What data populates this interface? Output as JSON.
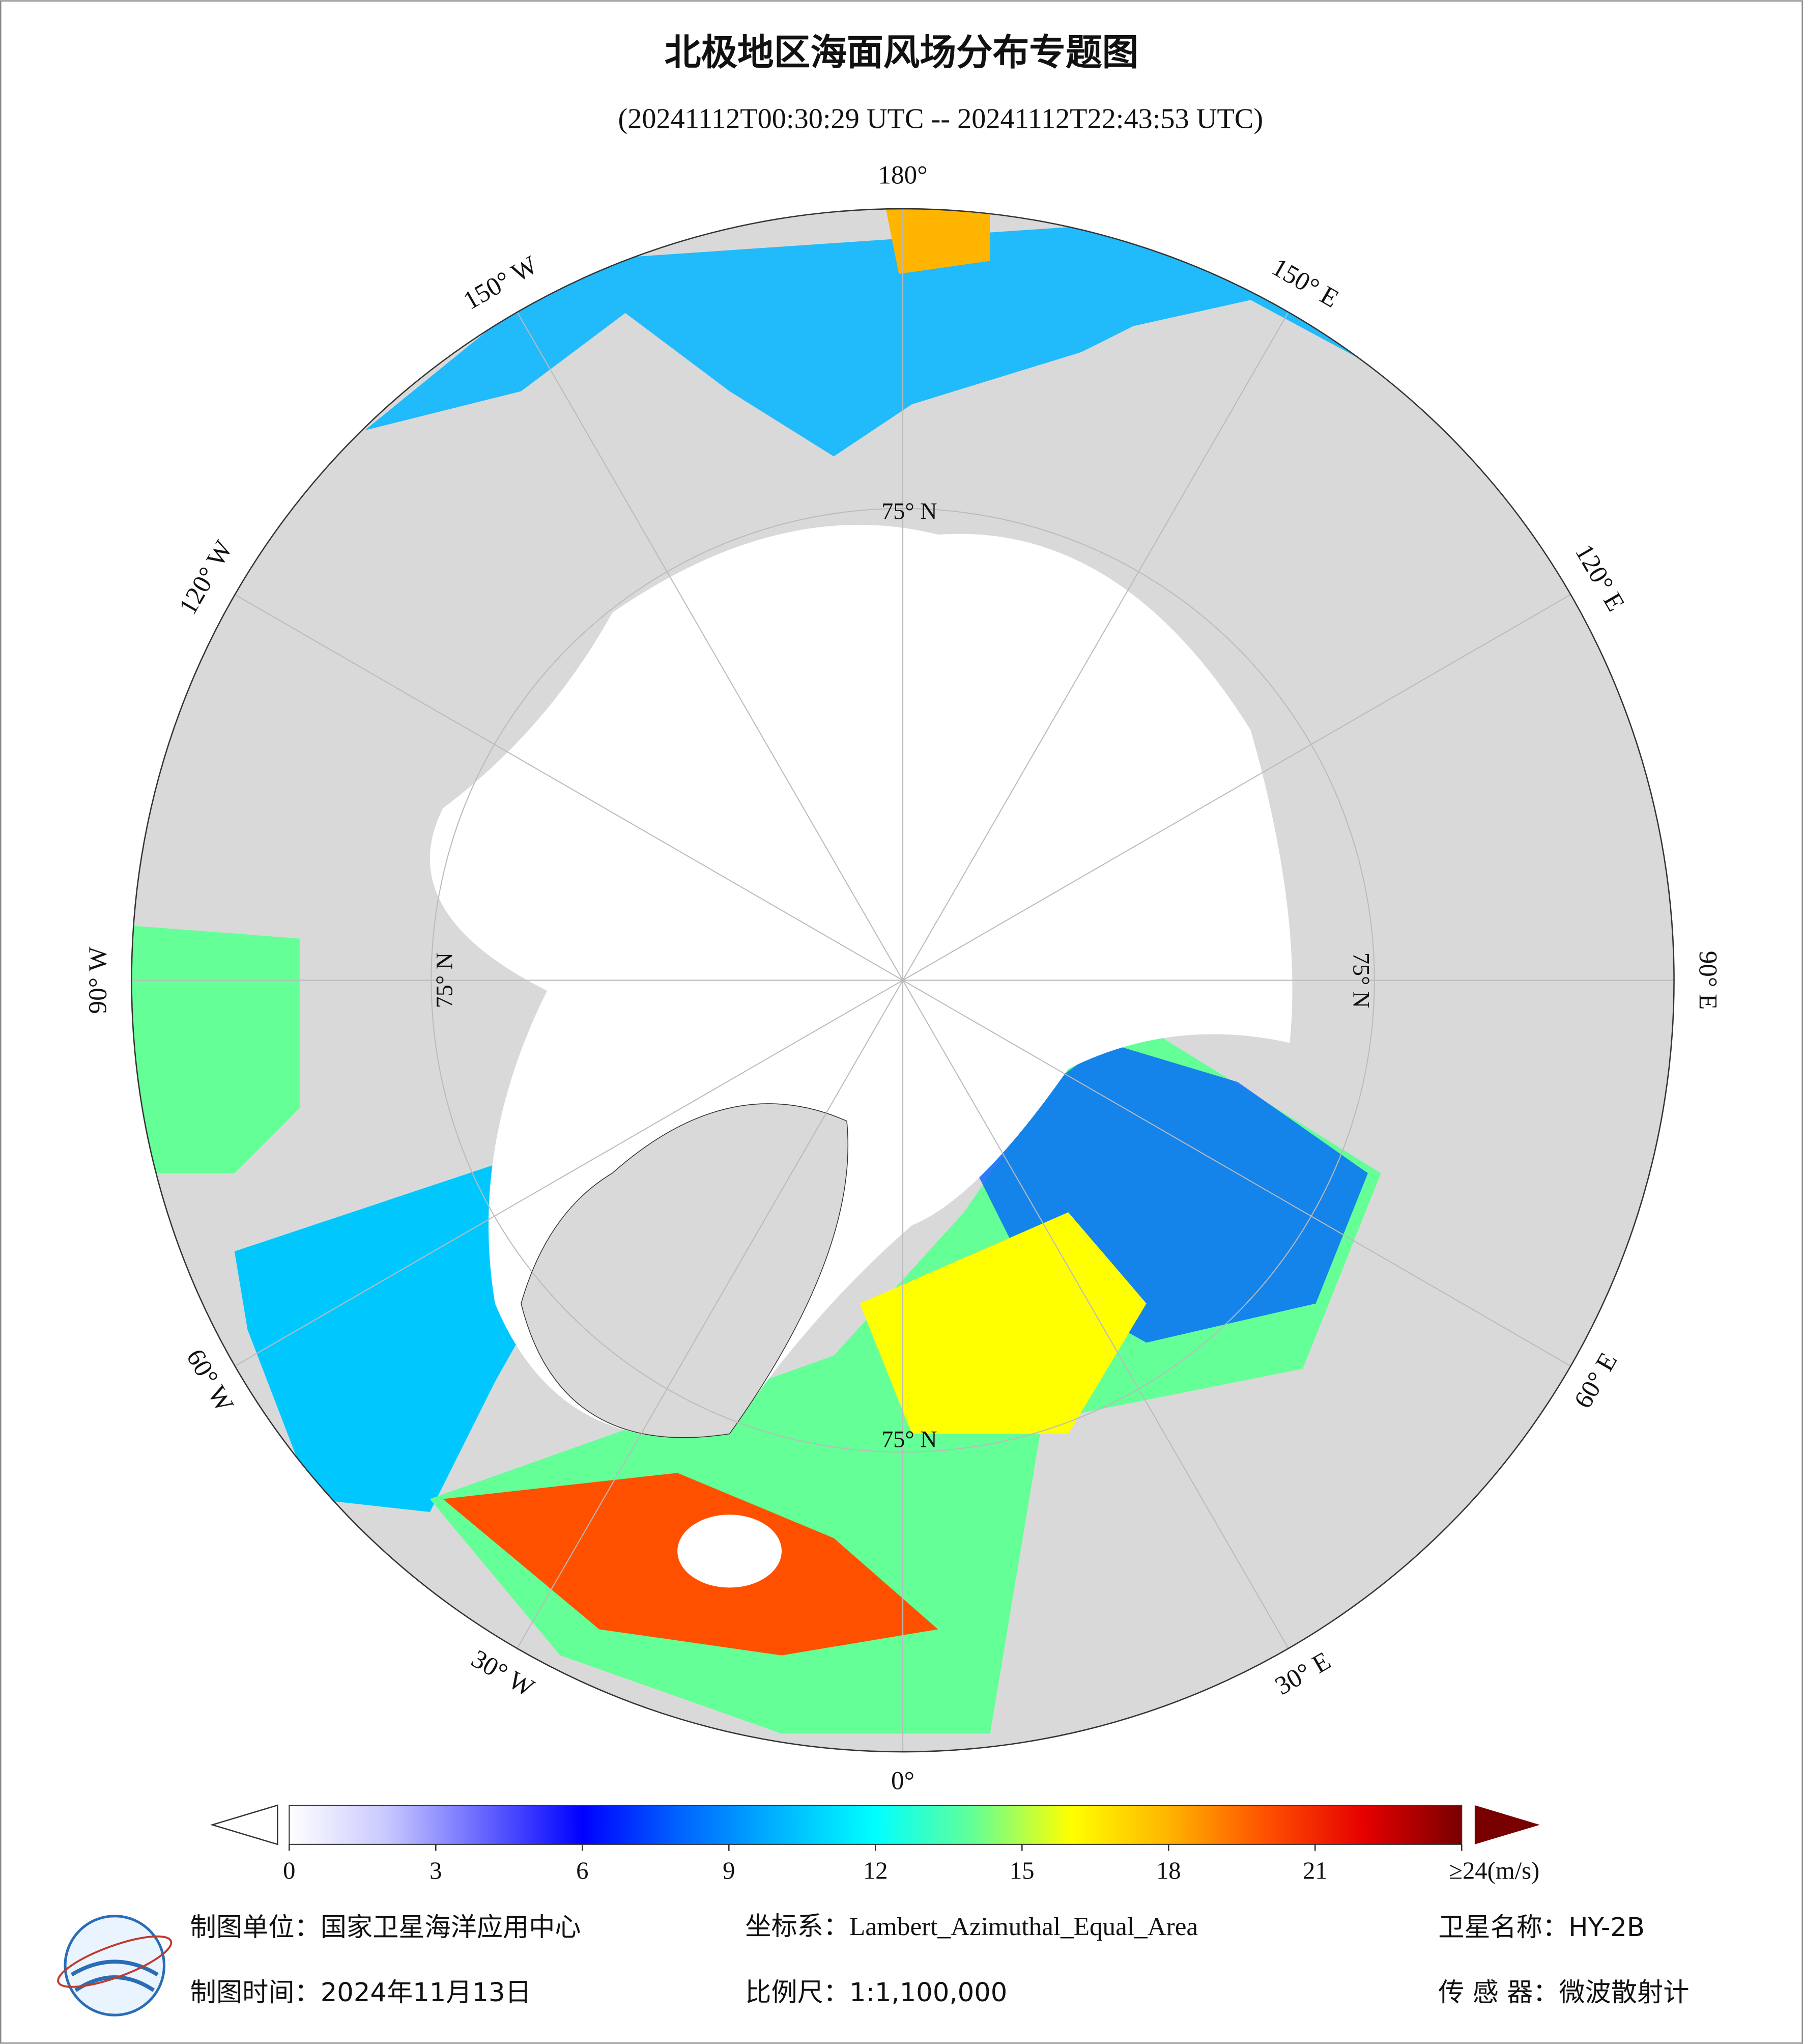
{
  "title": "北极地区海面风场分布专题图",
  "subtitle": "(20241112T00:30:29 UTC -- 20241112T22:43:53 UTC)",
  "map": {
    "longitude_labels": [
      "180°",
      "150° E",
      "120° E",
      "90° E",
      "60° E",
      "30° E",
      "0°",
      "30° W",
      "60° W",
      "90° W",
      "120° W",
      "150° W"
    ],
    "latitude_label": "75° N"
  },
  "colorbar": {
    "lim": [
      0,
      24
    ],
    "ticks": [
      0,
      3,
      6,
      9,
      12,
      15,
      18,
      21,
      {
        "value": 24,
        "label": "≥24(m/s)"
      }
    ],
    "colors": [
      "#ffffff",
      "#c8c8ff",
      "#6464ff",
      "#0000ff",
      "#0064ff",
      "#00b4ff",
      "#00ffff",
      "#64ff96",
      "#ffff00",
      "#ffb400",
      "#ff5000",
      "#e60000",
      "#780000"
    ]
  },
  "footer": {
    "unit": "制图单位：国家卫星海洋应用中心",
    "crs": "坐标系：Lambert_Azimuthal_Equal_Area",
    "satellite": "卫星名称：HY-2B",
    "date": "制图时间：2024年11月13日",
    "scale": "比例尺：1:1,100,000",
    "sensor": "传 感 器：微波散射计"
  }
}
